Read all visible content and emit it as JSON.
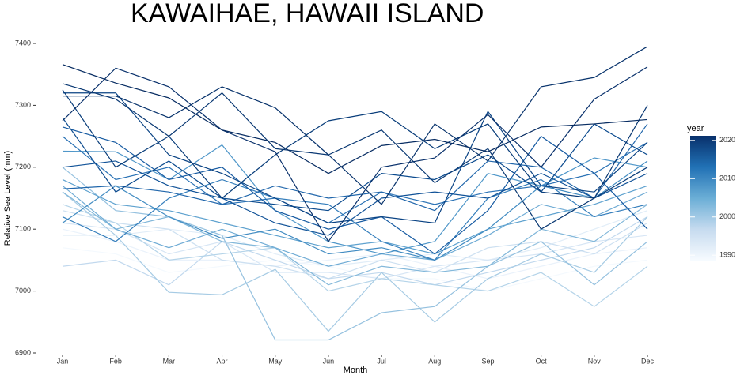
{
  "chart_data": {
    "type": "line",
    "title": "KAWAIHAE,  HAWAII ISLAND",
    "x_label": "Month",
    "y_label": "Relative Sea Level (mm)",
    "categories": [
      "Jan",
      "Feb",
      "Mar",
      "Apr",
      "May",
      "Jun",
      "Jul",
      "Aug",
      "Sep",
      "Oct",
      "Nov",
      "Dec"
    ],
    "ylim": [
      6900,
      7400
    ],
    "yticks": [
      6900,
      7000,
      7100,
      7200,
      7300,
      7400
    ],
    "grid": false,
    "colorbar": {
      "title": "year",
      "lim": [
        1988.6,
        2021.2
      ],
      "ticks": [
        1990,
        2000,
        2010,
        2020
      ],
      "colors": [
        "#f7fbff",
        "#c6dbef",
        "#6baed6",
        "#2171b5",
        "#08306b"
      ]
    },
    "series": [
      {
        "color": "#f4f9fe",
        "values": [
          7070,
          7060,
          7030,
          7040,
          7050,
          7040,
          7020,
          7020,
          7000,
          7020,
          7040,
          7050
        ]
      },
      {
        "color": "#eaf2fb",
        "values": [
          7100,
          7080,
          7050,
          7050,
          7040,
          7050,
          7060,
          7040,
          7020,
          7040,
          7060,
          7070
        ]
      },
      {
        "color": "#e1edf8",
        "values": [
          7090,
          7090,
          7100,
          7090,
          7060,
          7040,
          7050,
          7060,
          7050,
          7070,
          7100,
          7130
        ]
      },
      {
        "color": "#d7e6f5",
        "values": [
          7110,
          7100,
          7060,
          7080,
          7030,
          7030,
          7020,
          7040,
          7050,
          7060,
          7080,
          7090
        ]
      },
      {
        "color": "#cde0f1",
        "values": [
          7130,
          7110,
          7100,
          7050,
          7040,
          7020,
          7050,
          7030,
          7070,
          7080,
          7060,
          7110
        ]
      },
      {
        "color": "#c2d9ee",
        "values": [
          7040,
          7050,
          7010,
          7080,
          7050,
          7020,
          7030,
          7010,
          7030,
          7050,
          7070,
          7120
        ]
      },
      {
        "color": "#b5d4e9",
        "values": [
          7140,
          7110,
          7050,
          7060,
          7070,
          7000,
          7020,
          7010,
          7000,
          7030,
          6975,
          7040
        ]
      },
      {
        "color": "#a6cbe4",
        "values": [
          7160,
          7090,
          6998,
          6994,
          7035,
          6935,
          7030,
          6950,
          7020,
          7060,
          7030,
          7120
        ]
      },
      {
        "color": "#95c1df",
        "values": [
          7200,
          7130,
          7120,
          7090,
          6921,
          6921,
          6965,
          6975,
          7040,
          7080,
          7010,
          7080
        ]
      },
      {
        "color": "#83b8da",
        "values": [
          7160,
          7100,
          7120,
          7080,
          7070,
          7010,
          7040,
          7030,
          7040,
          7100,
          7080,
          7140
        ]
      },
      {
        "color": "#70acd5",
        "values": [
          7170,
          7100,
          7070,
          7100,
          7070,
          7040,
          7060,
          7050,
          7090,
          7140,
          7120,
          7160
        ]
      },
      {
        "color": "#5fa2cf",
        "values": [
          7180,
          7140,
          7130,
          7110,
          7090,
          7070,
          7080,
          7060,
          7100,
          7120,
          7140,
          7170
        ]
      },
      {
        "color": "#5097c9",
        "values": [
          7226,
          7225,
          7180,
          7236,
          7130,
          7080,
          7060,
          7080,
          7190,
          7170,
          7215,
          7200
        ]
      },
      {
        "color": "#428cc2",
        "values": [
          7110,
          7170,
          7120,
          7085,
          7100,
          7060,
          7070,
          7050,
          7100,
          7170,
          7150,
          7210
        ]
      },
      {
        "color": "#367fbc",
        "values": [
          7120,
          7080,
          7150,
          7180,
          7150,
          7140,
          7080,
          7050,
          7150,
          7180,
          7120,
          7140
        ]
      },
      {
        "color": "#2a72b5",
        "values": [
          7250,
          7180,
          7200,
          7140,
          7150,
          7110,
          7160,
          7140,
          7160,
          7170,
          7190,
          7240
        ]
      },
      {
        "color": "#2066ab",
        "values": [
          7165,
          7170,
          7160,
          7140,
          7170,
          7150,
          7160,
          7130,
          7210,
          7200,
          7150,
          7270
        ]
      },
      {
        "color": "#175ba2",
        "values": [
          7265,
          7240,
          7180,
          7200,
          7130,
          7100,
          7120,
          7060,
          7130,
          7250,
          7190,
          7100
        ]
      },
      {
        "color": "#0f5197",
        "values": [
          7200,
          7210,
          7170,
          7150,
          7110,
          7090,
          7150,
          7160,
          7150,
          7190,
          7150,
          7190
        ]
      },
      {
        "color": "#0b4a8e",
        "values": [
          7280,
          7160,
          7210,
          7150,
          7140,
          7130,
          7190,
          7180,
          7220,
          7160,
          7270,
          7220
        ]
      },
      {
        "color": "#0a4384",
        "values": [
          7320,
          7320,
          7220,
          7190,
          7150,
          7110,
          7120,
          7110,
          7290,
          7170,
          7160,
          7240
        ]
      },
      {
        "color": "#093d7a",
        "values": [
          7325,
          7200,
          7250,
          7150,
          7220,
          7275,
          7290,
          7230,
          7270,
          7160,
          7150,
          7200
        ]
      },
      {
        "color": "#083772",
        "values": [
          7335,
          7310,
          7250,
          7320,
          7230,
          7220,
          7260,
          7175,
          7230,
          7100,
          7150,
          7300
        ]
      },
      {
        "color": "#08336c",
        "values": [
          7315,
          7315,
          7280,
          7330,
          7296,
          7220,
          7140,
          7270,
          7210,
          7330,
          7345,
          7395
        ]
      },
      {
        "color": "#08306b",
        "values": [
          7275,
          7360,
          7330,
          7260,
          7225,
          7080,
          7200,
          7215,
          7285,
          7200,
          7310,
          7362
        ]
      },
      {
        "color": "#072c62",
        "values": [
          7366,
          7336,
          7312,
          7260,
          7240,
          7190,
          7235,
          7245,
          7225,
          7265,
          7270,
          7277
        ]
      }
    ]
  }
}
